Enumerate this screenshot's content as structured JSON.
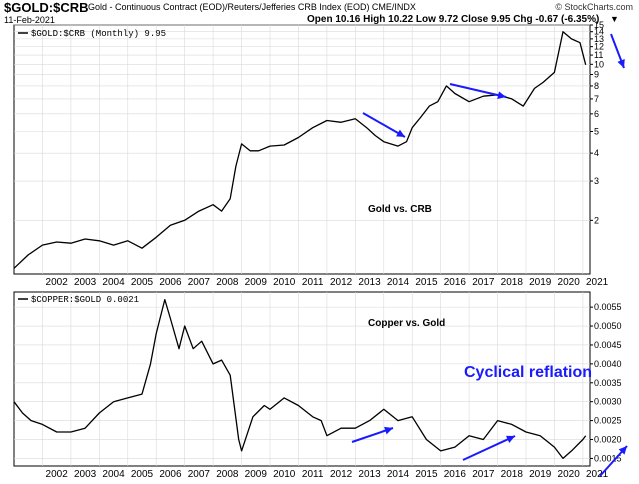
{
  "header": {
    "symbol": "$GOLD:$CRB",
    "description": "Gold - Continuous Contract (EOD)/Reuters/Jefferies CRB Index (EOD)  CME/INDX",
    "source": "© StockCharts.com",
    "date": "11-Feb-2021",
    "ohlc": "Open 10.16  High 10.22  Low 9.72  Close 9.95  Chg -0.67 (-6.35%)",
    "dropdown_arrow": "▼"
  },
  "colors": {
    "line": "#000000",
    "grid": "#d9d9d9",
    "arrow": "#1a1aff",
    "annotation": "#1a1aff",
    "frame": "#000000"
  },
  "chart_data": [
    {
      "type": "line",
      "legend": "$GOLD:$CRB (Monthly) 9.95",
      "annotation": "Gold vs. CRB",
      "y_scale": "log",
      "ylim": [
        1.15,
        15
      ],
      "y_ticks": [
        2,
        3,
        4,
        5,
        6,
        7,
        8,
        9,
        10,
        11,
        12,
        13,
        14,
        15
      ],
      "x_ticks": [
        "2002",
        "2003",
        "2004",
        "2005",
        "2006",
        "2007",
        "2008",
        "2009",
        "2010",
        "2011",
        "2012",
        "2013",
        "2014",
        "2015",
        "2016",
        "2017",
        "2018",
        "2019",
        "2020",
        "2021"
      ],
      "series": [
        {
          "x": [
            2001.0,
            2001.5,
            2002.0,
            2002.5,
            2003.0,
            2003.5,
            2004.0,
            2004.5,
            2005.0,
            2005.5,
            2006.0,
            2006.5,
            2007.0,
            2007.5,
            2008.0,
            2008.3,
            2008.6,
            2008.8,
            2009.0,
            2009.3,
            2009.6,
            2010.0,
            2010.5,
            2011.0,
            2011.5,
            2012.0,
            2012.5,
            2013.0,
            2013.4,
            2013.7,
            2014.0,
            2014.5,
            2014.8,
            2015.0,
            2015.3,
            2015.6,
            2015.9,
            2016.2,
            2016.5,
            2017.0,
            2017.5,
            2018.0,
            2018.5,
            2018.9,
            2019.3,
            2019.6,
            2020.0,
            2020.3,
            2020.6,
            2020.9,
            2021.1
          ],
          "y": [
            1.22,
            1.4,
            1.55,
            1.6,
            1.58,
            1.65,
            1.62,
            1.55,
            1.62,
            1.5,
            1.68,
            1.9,
            2.0,
            2.2,
            2.35,
            2.2,
            2.5,
            3.5,
            4.4,
            4.1,
            4.1,
            4.3,
            4.35,
            4.7,
            5.2,
            5.6,
            5.5,
            5.7,
            5.2,
            4.8,
            4.5,
            4.3,
            4.5,
            5.2,
            5.8,
            6.5,
            6.8,
            8.0,
            7.4,
            6.8,
            7.2,
            7.3,
            7.0,
            6.5,
            7.8,
            8.3,
            9.2,
            14.0,
            13.0,
            12.5,
            9.95
          ]
        }
      ],
      "arrows": 3
    },
    {
      "type": "line",
      "legend": "$COPPER:$GOLD 0.0021",
      "annotation": "Copper vs. Gold",
      "callout": "Cyclical reflation",
      "ylim": [
        0.0013,
        0.0059
      ],
      "y_ticks": [
        "0.0015",
        "0.0020",
        "0.0025",
        "0.0030",
        "0.0035",
        "0.0040",
        "0.0045",
        "0.0050",
        "0.0055"
      ],
      "x_ticks": [
        "2002",
        "2003",
        "2004",
        "2005",
        "2006",
        "2007",
        "2008",
        "2009",
        "2010",
        "2011",
        "2012",
        "2013",
        "2014",
        "2015",
        "2016",
        "2017",
        "2018",
        "2019",
        "2020",
        "2021"
      ],
      "series": [
        {
          "x": [
            2001.0,
            2001.3,
            2001.6,
            2002.0,
            2002.5,
            2003.0,
            2003.5,
            2004.0,
            2004.5,
            2005.0,
            2005.5,
            2005.8,
            2006.0,
            2006.3,
            2006.5,
            2006.8,
            2007.0,
            2007.3,
            2007.6,
            2008.0,
            2008.3,
            2008.6,
            2008.9,
            2009.0,
            2009.4,
            2009.8,
            2010.0,
            2010.5,
            2011.0,
            2011.5,
            2011.8,
            2012.0,
            2012.5,
            2013.0,
            2013.5,
            2014.0,
            2014.5,
            2015.0,
            2015.5,
            2016.0,
            2016.5,
            2017.0,
            2017.5,
            2018.0,
            2018.5,
            2019.0,
            2019.5,
            2020.0,
            2020.3,
            2020.6,
            2021.0,
            2021.1
          ],
          "y": [
            0.003,
            0.0027,
            0.0025,
            0.0024,
            0.0022,
            0.0022,
            0.0023,
            0.0027,
            0.003,
            0.0031,
            0.0032,
            0.004,
            0.0048,
            0.0057,
            0.0052,
            0.0044,
            0.005,
            0.0044,
            0.0046,
            0.004,
            0.0041,
            0.0037,
            0.002,
            0.0017,
            0.0026,
            0.0029,
            0.0028,
            0.0031,
            0.0029,
            0.0026,
            0.0025,
            0.0021,
            0.0023,
            0.0023,
            0.0025,
            0.0028,
            0.0025,
            0.0026,
            0.002,
            0.0017,
            0.0018,
            0.0021,
            0.002,
            0.0025,
            0.0024,
            0.0022,
            0.0021,
            0.0018,
            0.0015,
            0.0017,
            0.002,
            0.0021
          ]
        }
      ],
      "arrows": 3
    }
  ]
}
